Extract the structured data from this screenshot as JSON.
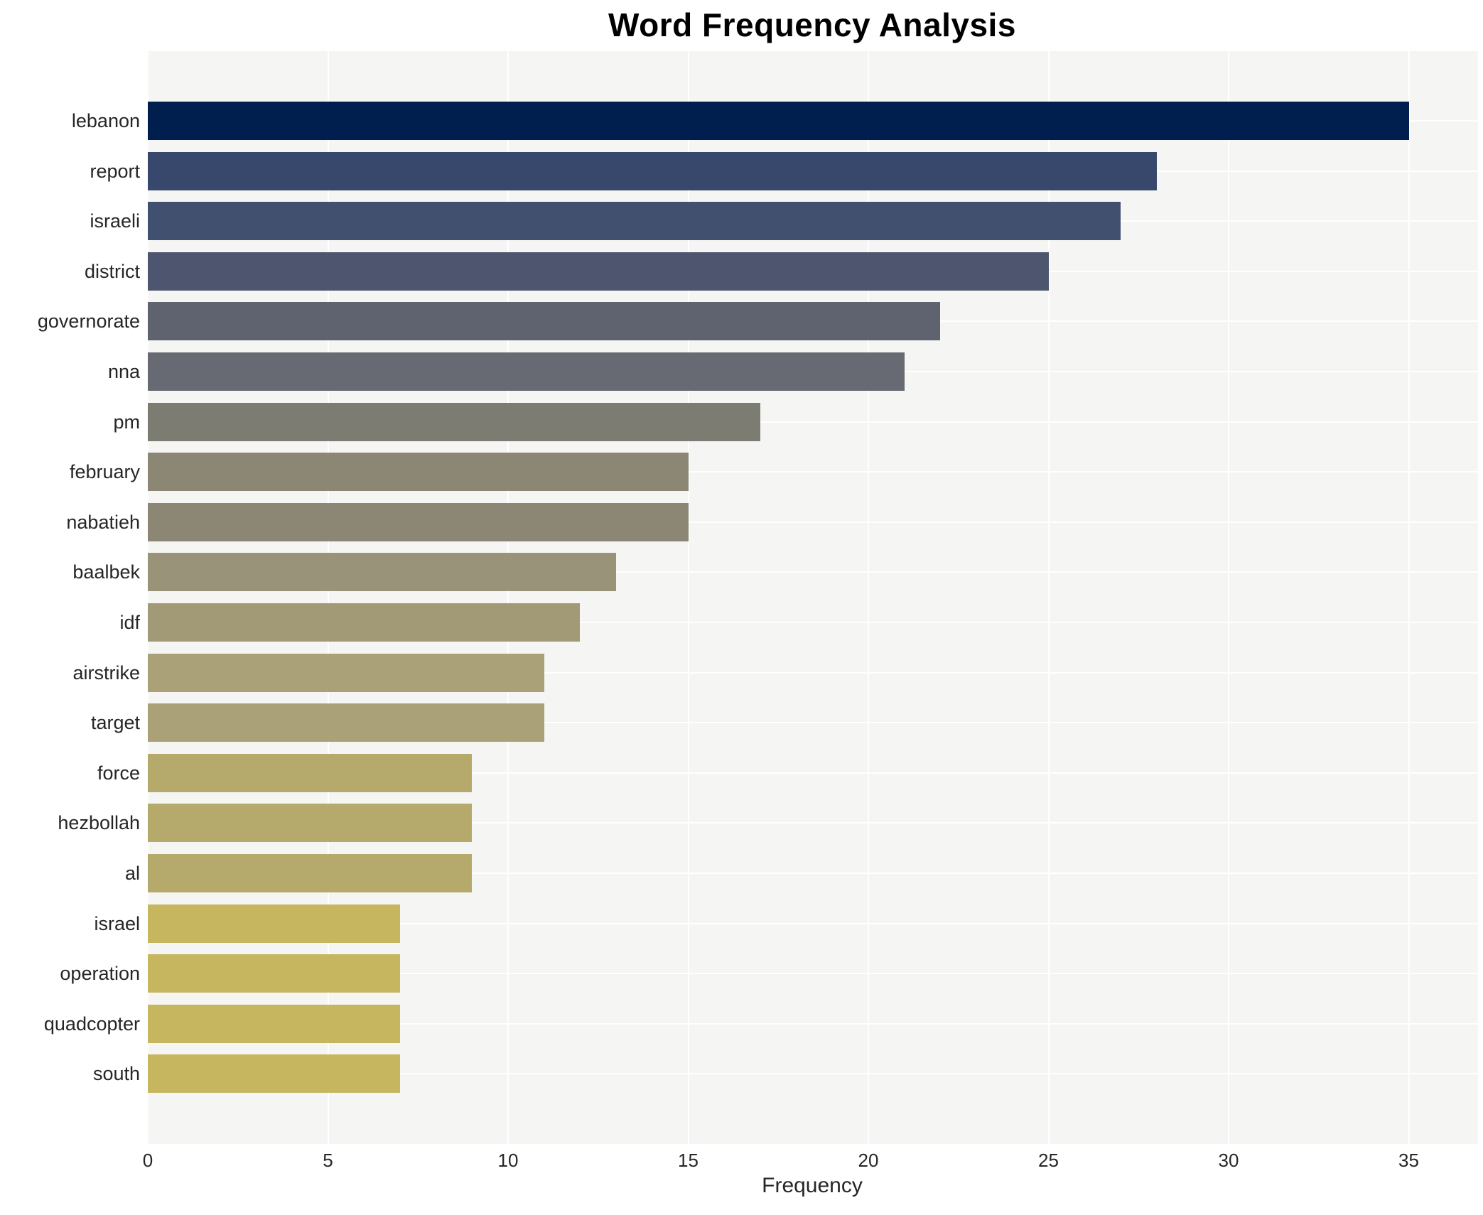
{
  "chart_data": {
    "type": "bar",
    "orientation": "horizontal",
    "title": "Word Frequency Analysis",
    "xlabel": "Frequency",
    "ylabel": "",
    "categories": [
      "lebanon",
      "report",
      "israeli",
      "district",
      "governorate",
      "nna",
      "pm",
      "february",
      "nabatieh",
      "baalbek",
      "idf",
      "airstrike",
      "target",
      "force",
      "hezbollah",
      "al",
      "israel",
      "operation",
      "quadcopter",
      "south"
    ],
    "values": [
      35,
      28,
      27,
      25,
      22,
      21,
      17,
      15,
      15,
      13,
      12,
      11,
      11,
      9,
      9,
      9,
      7,
      7,
      7,
      7
    ],
    "bar_colors": [
      "#011f4e",
      "#37486c",
      "#41506f",
      "#4e566f",
      "#5f6370",
      "#676a72",
      "#7c7c73",
      "#8b8774",
      "#8b8774",
      "#99937a",
      "#a29a77",
      "#aaa178",
      "#aaa178",
      "#b5aa6b",
      "#b5aa6b",
      "#b5aa6b",
      "#c6b65f",
      "#c6b65f",
      "#c6b65f",
      "#c6b65f"
    ],
    "x_ticks": [
      0,
      5,
      10,
      15,
      20,
      25,
      30,
      35
    ],
    "xlim": [
      0,
      36.9
    ],
    "grid": true,
    "legend": "none",
    "plot_background": "#f5f5f3",
    "grid_color": "#ffffff",
    "tick_label_color": "#262626",
    "title_color": "#000000"
  }
}
